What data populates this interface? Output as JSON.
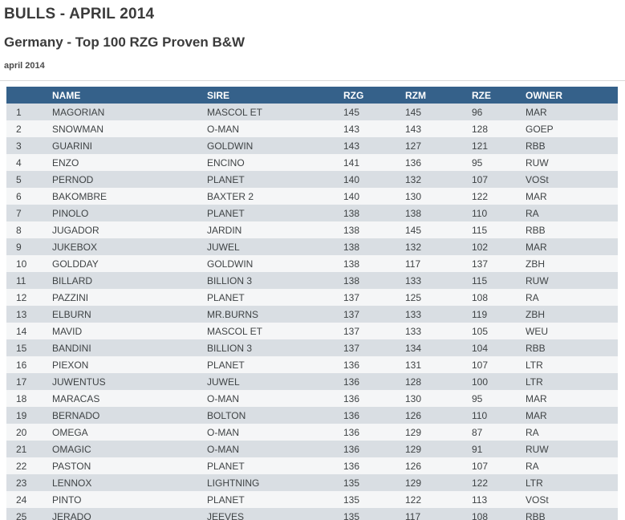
{
  "page": {
    "title": "BULLS - APRIL 2014",
    "subtitle": "Germany - Top 100 RZG Proven B&W",
    "date_label": "april 2014"
  },
  "colors": {
    "header_bg": "#35618a",
    "header_text": "#ffffff",
    "row_odd_bg": "#d9dee3",
    "row_even_bg": "#f5f6f7",
    "body_text": "#3f4345",
    "title_text": "#3b3b3b"
  },
  "table": {
    "columns": [
      {
        "key": "rank",
        "label": ""
      },
      {
        "key": "name",
        "label": "NAME"
      },
      {
        "key": "sire",
        "label": "SIRE"
      },
      {
        "key": "rzg",
        "label": "RZG"
      },
      {
        "key": "rzm",
        "label": "RZM"
      },
      {
        "key": "rze",
        "label": "RZE"
      },
      {
        "key": "owner",
        "label": "OWNER"
      }
    ],
    "rows": [
      {
        "rank": 1,
        "name": "MAGORIAN",
        "sire": "MASCOL ET",
        "rzg": 145,
        "rzm": 145,
        "rze": 96,
        "owner": "MAR"
      },
      {
        "rank": 2,
        "name": "SNOWMAN",
        "sire": "O-MAN",
        "rzg": 143,
        "rzm": 143,
        "rze": 128,
        "owner": "GOEP"
      },
      {
        "rank": 3,
        "name": "GUARINI",
        "sire": "GOLDWIN",
        "rzg": 143,
        "rzm": 127,
        "rze": 121,
        "owner": "RBB"
      },
      {
        "rank": 4,
        "name": "ENZO",
        "sire": "ENCINO",
        "rzg": 141,
        "rzm": 136,
        "rze": 95,
        "owner": "RUW"
      },
      {
        "rank": 5,
        "name": "PERNOD",
        "sire": "PLANET",
        "rzg": 140,
        "rzm": 132,
        "rze": 107,
        "owner": "VOSt"
      },
      {
        "rank": 6,
        "name": "BAKOMBRE",
        "sire": "BAXTER 2",
        "rzg": 140,
        "rzm": 130,
        "rze": 122,
        "owner": "MAR"
      },
      {
        "rank": 7,
        "name": "PINOLO",
        "sire": "PLANET",
        "rzg": 138,
        "rzm": 138,
        "rze": 110,
        "owner": "RA"
      },
      {
        "rank": 8,
        "name": "JUGADOR",
        "sire": "JARDIN",
        "rzg": 138,
        "rzm": 145,
        "rze": 115,
        "owner": "RBB"
      },
      {
        "rank": 9,
        "name": "JUKEBOX",
        "sire": "JUWEL",
        "rzg": 138,
        "rzm": 132,
        "rze": 102,
        "owner": "MAR"
      },
      {
        "rank": 10,
        "name": "GOLDDAY",
        "sire": "GOLDWIN",
        "rzg": 138,
        "rzm": 117,
        "rze": 137,
        "owner": "ZBH"
      },
      {
        "rank": 11,
        "name": "BILLARD",
        "sire": "BILLION 3",
        "rzg": 138,
        "rzm": 133,
        "rze": 115,
        "owner": "RUW"
      },
      {
        "rank": 12,
        "name": "PAZZINI",
        "sire": "PLANET",
        "rzg": 137,
        "rzm": 125,
        "rze": 108,
        "owner": "RA"
      },
      {
        "rank": 13,
        "name": "ELBURN",
        "sire": "MR.BURNS",
        "rzg": 137,
        "rzm": 133,
        "rze": 119,
        "owner": "ZBH"
      },
      {
        "rank": 14,
        "name": "MAVID",
        "sire": "MASCOL ET",
        "rzg": 137,
        "rzm": 133,
        "rze": 105,
        "owner": "WEU"
      },
      {
        "rank": 15,
        "name": "BANDINI",
        "sire": "BILLION 3",
        "rzg": 137,
        "rzm": 134,
        "rze": 104,
        "owner": "RBB"
      },
      {
        "rank": 16,
        "name": "PIEXON",
        "sire": "PLANET",
        "rzg": 136,
        "rzm": 131,
        "rze": 107,
        "owner": "LTR"
      },
      {
        "rank": 17,
        "name": "JUWENTUS",
        "sire": "JUWEL",
        "rzg": 136,
        "rzm": 128,
        "rze": 100,
        "owner": "LTR"
      },
      {
        "rank": 18,
        "name": "MARACAS",
        "sire": "O-MAN",
        "rzg": 136,
        "rzm": 130,
        "rze": 95,
        "owner": "MAR"
      },
      {
        "rank": 19,
        "name": "BERNADO",
        "sire": "BOLTON",
        "rzg": 136,
        "rzm": 126,
        "rze": 110,
        "owner": "MAR"
      },
      {
        "rank": 20,
        "name": "OMEGA",
        "sire": "O-MAN",
        "rzg": 136,
        "rzm": 129,
        "rze": 87,
        "owner": "RA"
      },
      {
        "rank": 21,
        "name": "OMAGIC",
        "sire": "O-MAN",
        "rzg": 136,
        "rzm": 129,
        "rze": 91,
        "owner": "RUW"
      },
      {
        "rank": 22,
        "name": "PASTON",
        "sire": "PLANET",
        "rzg": 136,
        "rzm": 126,
        "rze": 107,
        "owner": "RA"
      },
      {
        "rank": 23,
        "name": "LENNOX",
        "sire": "LIGHTNING",
        "rzg": 135,
        "rzm": 129,
        "rze": 122,
        "owner": "LTR"
      },
      {
        "rank": 24,
        "name": "PINTO",
        "sire": "PLANET",
        "rzg": 135,
        "rzm": 122,
        "rze": 113,
        "owner": "VOSt"
      },
      {
        "rank": 25,
        "name": "JERADO",
        "sire": "JEEVES",
        "rzg": 135,
        "rzm": 117,
        "rze": 108,
        "owner": "RBB"
      }
    ]
  }
}
